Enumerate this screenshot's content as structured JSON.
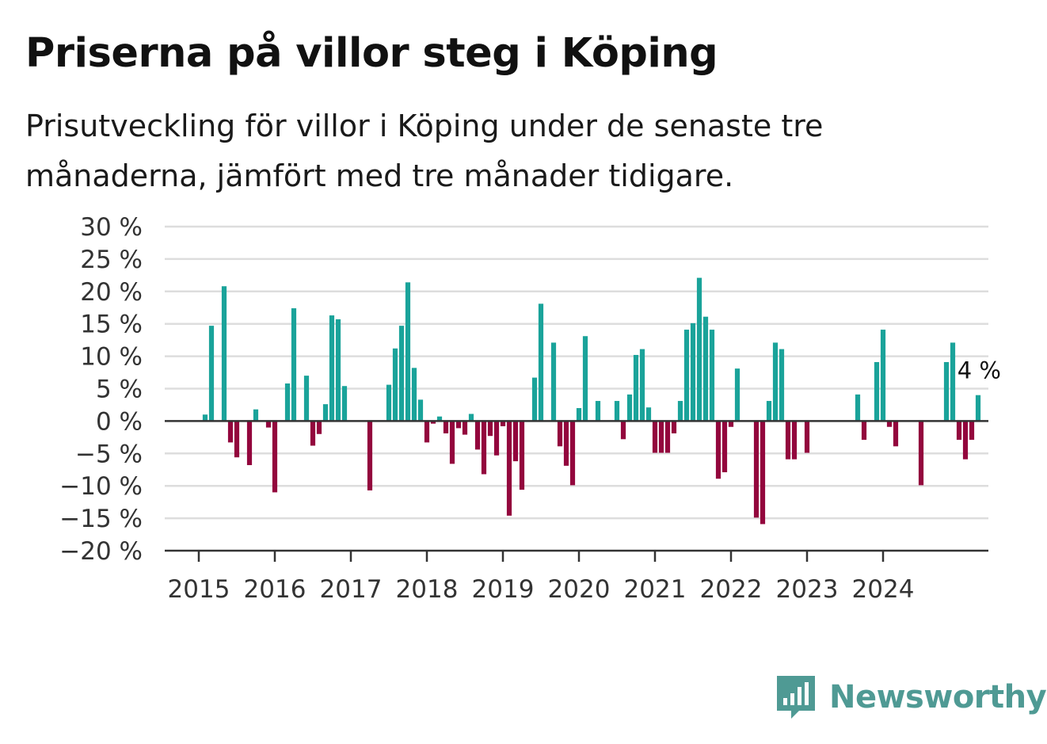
{
  "title": "Priserna på villor steg i Köping",
  "subtitle": "Prisutveckling för villor i Köping under de senaste tre månaderna, jämfört med tre månader tidigare.",
  "brand": {
    "name": "Newsworthy",
    "icon": "bar-chart-speech-bubble-icon",
    "color": "#4f9a94"
  },
  "chart_data": {
    "type": "bar",
    "title": "Priserna på villor steg i Köping",
    "subtitle": "Prisutveckling för villor i Köping under de senaste tre månaderna, jämfört med tre månader tidigare.",
    "xlabel": "",
    "ylabel": "",
    "ylim": [
      -20,
      30
    ],
    "yticks": [
      30,
      25,
      20,
      15,
      10,
      5,
      0,
      -5,
      -10,
      -15,
      -20
    ],
    "ytick_labels": [
      "30 %",
      "25 %",
      "20 %",
      "15 %",
      "10 %",
      "5 %",
      "0 %",
      "−5 %",
      "−10 %",
      "−15 %",
      "−20 %"
    ],
    "xticks": [
      "2015",
      "2016",
      "2017",
      "2018",
      "2019",
      "2020",
      "2021",
      "2022",
      "2023",
      "2024"
    ],
    "x_start": "2015-01",
    "frequency": "monthly",
    "grid": true,
    "positive_color": "#1aa39a",
    "negative_color": "#93063d",
    "values": [
      1,
      14.7,
      0,
      20.8,
      -3.3,
      -5.6,
      0,
      -6.8,
      1.8,
      0,
      -1,
      -11,
      0,
      5.8,
      17.4,
      0,
      7,
      -3.8,
      -2,
      2.6,
      16.3,
      15.7,
      5.4,
      0,
      0,
      0,
      -10.7,
      0,
      0,
      5.6,
      11.2,
      14.7,
      21.4,
      8.2,
      3.3,
      -3.3,
      -0.4,
      0.7,
      -1.9,
      -6.6,
      -1.1,
      -2.1,
      1.1,
      -4.4,
      -8.2,
      -2.3,
      -5.3,
      -0.8,
      -14.6,
      -6.2,
      -10.6,
      0,
      6.7,
      18.1,
      0,
      12.1,
      -3.9,
      -6.9,
      -9.9,
      2,
      13.1,
      0,
      3.1,
      0,
      0,
      3.1,
      -2.8,
      4.1,
      10.2,
      11.1,
      2.1,
      -4.9,
      -4.9,
      -4.9,
      -1.9,
      3.1,
      14.1,
      15.1,
      22.1,
      16.1,
      14.1,
      -8.9,
      -7.9,
      -0.9,
      8.1,
      0,
      0,
      -14.9,
      -15.9,
      3.1,
      12.1,
      11.1,
      -5.9,
      -5.9,
      0,
      -4.9,
      0,
      0,
      0,
      0,
      0,
      0,
      0,
      4.1,
      -2.9,
      0,
      9.1,
      14.1,
      -0.9,
      -3.9,
      0,
      0,
      0,
      -9.9,
      0,
      0,
      0,
      9.1,
      12.1,
      -2.9,
      -5.9,
      -2.9,
      4
    ],
    "annotation": "4 %"
  }
}
